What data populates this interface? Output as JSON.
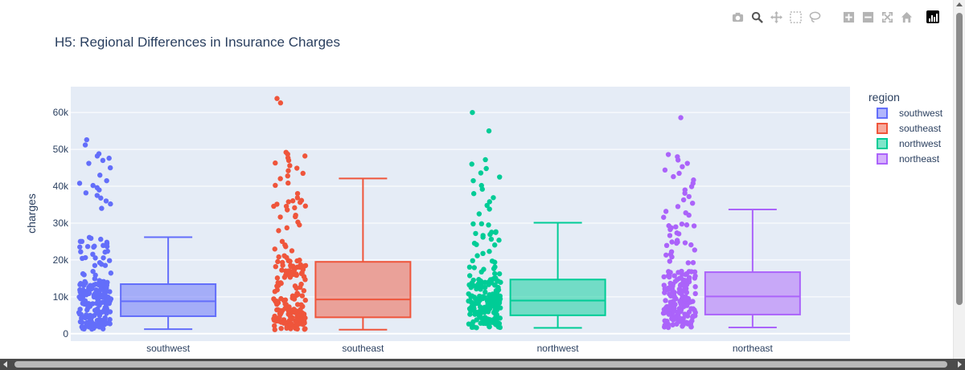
{
  "modebar": {
    "buttons": [
      {
        "icon": "camera-icon",
        "name": "download-plot-button"
      },
      {
        "icon": "zoom-icon",
        "name": "zoom-button",
        "active": true
      },
      {
        "icon": "pan-icon",
        "name": "pan-button"
      },
      {
        "icon": "box-select-icon",
        "name": "box-select-button"
      },
      {
        "icon": "lasso-select-icon",
        "name": "lasso-select-button"
      },
      {
        "icon": "zoom-in-icon",
        "name": "zoom-in-button"
      },
      {
        "icon": "zoom-out-icon",
        "name": "zoom-out-button"
      },
      {
        "icon": "autoscale-icon",
        "name": "autoscale-button"
      },
      {
        "icon": "home-icon",
        "name": "reset-axes-button"
      }
    ],
    "logo_icon": "plotly-logo-icon"
  },
  "chart_data": {
    "type": "box",
    "title": "H5: Regional Differences in Insurance Charges",
    "xlabel": "",
    "ylabel": "charges",
    "ylim": [
      -2000,
      67000
    ],
    "y_ticks": [
      0,
      10000,
      20000,
      30000,
      40000,
      50000,
      60000
    ],
    "y_tick_labels": [
      "0",
      "10k",
      "20k",
      "30k",
      "40k",
      "50k",
      "60k"
    ],
    "categories": [
      "southwest",
      "southeast",
      "northwest",
      "northeast"
    ],
    "grid": true,
    "legend": {
      "title": "region",
      "placement": "right"
    },
    "points": "all (jittered)",
    "series": [
      {
        "name": "southwest",
        "color": "#636efa",
        "min": 1250,
        "q1": 4750,
        "median": 8800,
        "q3": 13450,
        "max": 26200,
        "outliers": [
          34000,
          35200,
          36000,
          36800,
          37500,
          38200,
          39000,
          39600,
          40200,
          40800,
          41500,
          43000,
          45000,
          46200,
          47000,
          47600,
          48200,
          48800,
          51200,
          52600
        ]
      },
      {
        "name": "southeast",
        "color": "#ef553b",
        "min": 1100,
        "q1": 4450,
        "median": 9300,
        "q3": 19500,
        "max": 42100,
        "outliers": [
          42800,
          43500,
          44200,
          44900,
          45600,
          46300,
          47000,
          47700,
          48200,
          48700,
          49200,
          62600,
          63800
        ]
      },
      {
        "name": "northwest",
        "color": "#00cc96",
        "min": 1600,
        "q1": 5000,
        "median": 9000,
        "q3": 14700,
        "max": 30100,
        "outliers": [
          32500,
          33800,
          34800,
          35800,
          36900,
          38000,
          39200,
          40200,
          41500,
          42500,
          43600,
          44800,
          46000,
          47200,
          55000,
          60000
        ]
      },
      {
        "name": "northeast",
        "color": "#ab63fa",
        "min": 1700,
        "q1": 5200,
        "median": 10100,
        "q3": 16700,
        "max": 33700,
        "outliers": [
          34500,
          35400,
          36300,
          37200,
          38100,
          39000,
          39900,
          40800,
          41700,
          42600,
          43500,
          44400,
          45300,
          46200,
          47100,
          48000,
          48600,
          58600
        ]
      }
    ]
  }
}
